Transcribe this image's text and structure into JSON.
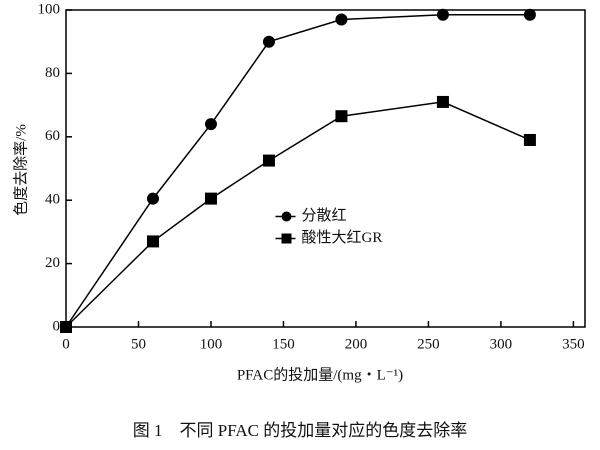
{
  "chart_data": {
    "type": "line",
    "x": [
      0,
      60,
      100,
      140,
      190,
      260,
      320
    ],
    "series": [
      {
        "name": "分散红",
        "color": "#000000",
        "marker": "circle",
        "values": [
          0,
          40.5,
          64,
          90,
          97,
          98.5,
          98.5
        ]
      },
      {
        "name": "酸性大红GR",
        "color": "#000000",
        "marker": "square",
        "values": [
          0,
          27,
          40.5,
          52.5,
          66.5,
          71,
          59
        ]
      }
    ],
    "xlim": [
      0,
      358
    ],
    "xticks": [
      0,
      50,
      100,
      150,
      200,
      250,
      300,
      350
    ],
    "ylim": [
      0,
      100
    ],
    "yticks": [
      0,
      20,
      40,
      60,
      80,
      100
    ],
    "x_label": "PFAC的投加量/(mg・L⁻¹)",
    "y_label": "色度去除率/%",
    "legend": "center",
    "caption": "图 1　不同 PFAC 的投加量对应的色度去除率"
  }
}
